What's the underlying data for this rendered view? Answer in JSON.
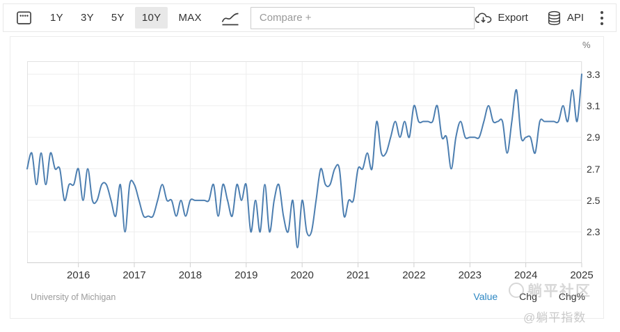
{
  "toolbar": {
    "ranges": [
      {
        "label": "1Y",
        "active": false
      },
      {
        "label": "3Y",
        "active": false
      },
      {
        "label": "5Y",
        "active": false
      },
      {
        "label": "10Y",
        "active": true
      },
      {
        "label": "MAX",
        "active": false
      }
    ],
    "compare_placeholder": "Compare +",
    "export_label": "Export",
    "api_label": "API",
    "icons": [
      "calendar-icon",
      "line-chart-icon",
      "cloud-download-icon",
      "database-icon",
      "kebab-menu-icon"
    ]
  },
  "chart_data": {
    "type": "line",
    "source": "University of Michigan",
    "unit": "%",
    "frequency": "monthly",
    "x_start": "2015-02",
    "x_end": "2025-01",
    "line_color": "#4c7eb0",
    "grid": true,
    "ylim": [
      2.102,
      3.382
    ],
    "y_ticks": [
      3.3,
      3.1,
      2.9,
      2.7,
      2.5,
      2.3
    ],
    "x_ticks": [
      {
        "label": "2016",
        "index": 11
      },
      {
        "label": "2017",
        "index": 23
      },
      {
        "label": "2018",
        "index": 35
      },
      {
        "label": "2019",
        "index": 47
      },
      {
        "label": "2020",
        "index": 59
      },
      {
        "label": "2021",
        "index": 71
      },
      {
        "label": "2022",
        "index": 83
      },
      {
        "label": "2023",
        "index": 95
      },
      {
        "label": "2024",
        "index": 107
      },
      {
        "label": "2025",
        "index": 119
      }
    ],
    "values": [
      2.7,
      2.8,
      2.6,
      2.8,
      2.6,
      2.8,
      2.7,
      2.7,
      2.5,
      2.6,
      2.6,
      2.7,
      2.5,
      2.7,
      2.5,
      2.5,
      2.6,
      2.6,
      2.5,
      2.4,
      2.6,
      2.3,
      2.6,
      2.6,
      2.5,
      2.4,
      2.4,
      2.4,
      2.5,
      2.6,
      2.5,
      2.5,
      2.4,
      2.5,
      2.4,
      2.5,
      2.5,
      2.5,
      2.5,
      2.5,
      2.6,
      2.4,
      2.6,
      2.5,
      2.4,
      2.6,
      2.5,
      2.6,
      2.3,
      2.5,
      2.3,
      2.6,
      2.3,
      2.5,
      2.6,
      2.4,
      2.3,
      2.5,
      2.2,
      2.5,
      2.3,
      2.3,
      2.5,
      2.7,
      2.6,
      2.6,
      2.7,
      2.7,
      2.4,
      2.5,
      2.5,
      2.7,
      2.7,
      2.8,
      2.7,
      3.0,
      2.8,
      2.8,
      2.9,
      3.0,
      2.9,
      3.0,
      2.9,
      3.1,
      3.0,
      3.0,
      3.0,
      3.0,
      3.1,
      2.9,
      2.9,
      2.7,
      2.9,
      3.0,
      2.9,
      2.9,
      2.9,
      2.9,
      3.0,
      3.1,
      3.0,
      3.0,
      3.0,
      2.8,
      3.0,
      3.2,
      2.9,
      2.9,
      2.9,
      2.8,
      3.0,
      3.0,
      3.0,
      3.0,
      3.0,
      3.1,
      3.0,
      3.2,
      3.0,
      3.3
    ]
  },
  "footer": {
    "source": "University of Michigan",
    "links": [
      {
        "label": "Value",
        "active": true
      },
      {
        "label": "Chg",
        "active": false
      },
      {
        "label": "Chg%",
        "active": false
      }
    ]
  },
  "watermark": {
    "line1": "躺平社区",
    "line2": "@躺平指数"
  },
  "colors": {
    "line": "#4c7eb0",
    "grid": "#ededed",
    "plot_border": "#e2e2e2",
    "axis_bottom": "#cfcfcf",
    "active_range_bg": "#e8e8e8",
    "link_blue": "#2d87c3",
    "text": "#333333",
    "muted": "#9b9b9b"
  }
}
